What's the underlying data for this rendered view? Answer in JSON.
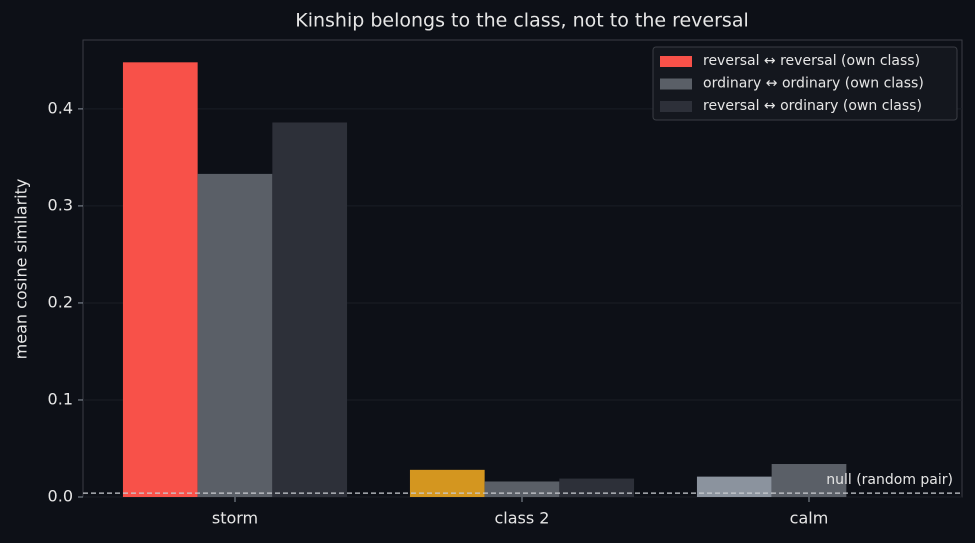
{
  "chart_data": {
    "type": "bar",
    "title": "Kinship belongs to the class, not to the reversal",
    "y_label": "mean cosine similarity",
    "categories": [
      "storm",
      "class 2",
      "calm"
    ],
    "series": [
      {
        "name": "reversal ↔ reversal (own class)",
        "color": "#f85149",
        "colors": [
          "#f85149",
          "#d4961f",
          "#8b939e"
        ],
        "values": [
          0.448,
          0.028,
          0.021
        ]
      },
      {
        "name": "ordinary ↔ ordinary (own class)",
        "color": "#5a5f67",
        "values": [
          0.333,
          0.016,
          0.034
        ]
      },
      {
        "name": "reversal ↔ ordinary (own class)",
        "color": "#2d3039",
        "values": [
          0.386,
          0.019,
          null
        ]
      }
    ],
    "ylim": [
      0,
      0.471
    ],
    "yticks": [
      {
        "value": 0,
        "label": "0.0"
      },
      0.1,
      0.2,
      0.3,
      0.4
    ],
    "grid": true,
    "legend": "upper right",
    "reference_line": {
      "value": 0.004,
      "label": "null (random pair)",
      "color": "#c9ccd1"
    }
  }
}
